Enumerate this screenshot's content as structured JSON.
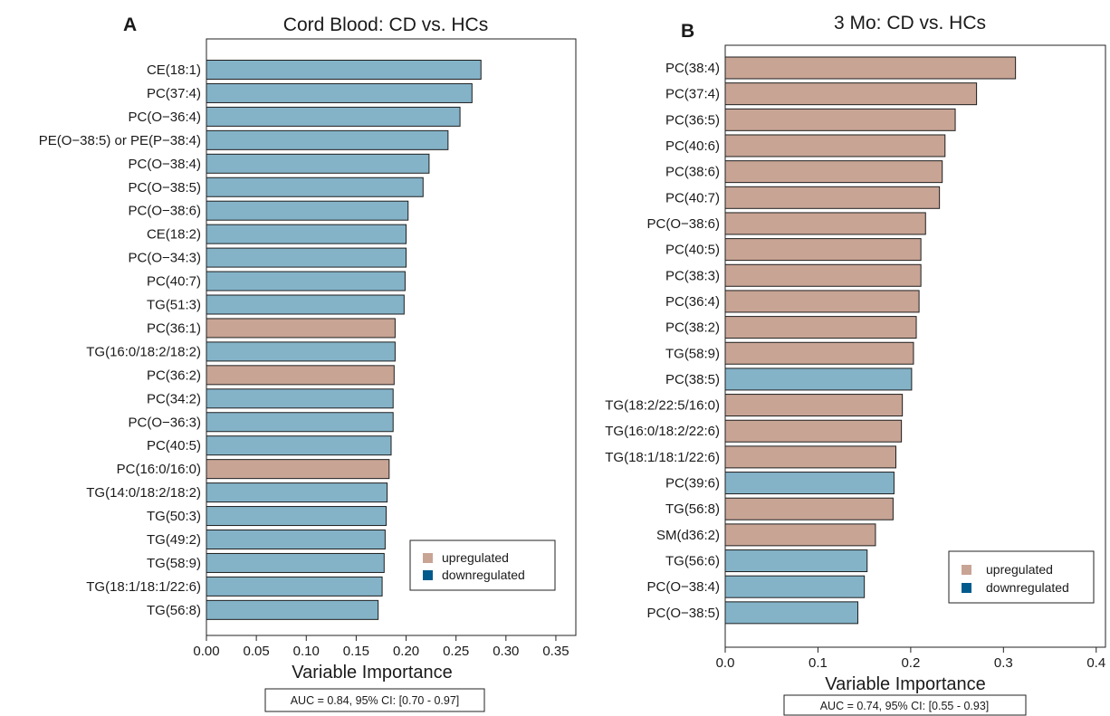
{
  "legend_colors": {
    "upregulated": "#c8a495",
    "downregulated": "#005a8c"
  },
  "bar_colors": {
    "upregulated": "#c8a495",
    "downregulated": "#84b3c8"
  },
  "chart_data": [
    {
      "type": "bar",
      "orientation": "horizontal",
      "panel": "A",
      "title": "Cord Blood: CD vs. HCs",
      "xlabel": "Variable Importance",
      "ylabel": "",
      "xlim": [
        0,
        0.37
      ],
      "x_ticks": [
        "0.00",
        "0.05",
        "0.10",
        "0.15",
        "0.20",
        "0.25",
        "0.30",
        "0.35"
      ],
      "grid": false,
      "legend_position": "bottom-right",
      "legend": [
        {
          "label": "upregulated",
          "key": "upregulated"
        },
        {
          "label": "downregulated",
          "key": "downregulated"
        }
      ],
      "annotation": "AUC = 0.84, 95% CI: [0.70 - 0.97]",
      "categories": [
        "CE(18:1)",
        "PC(37:4)",
        "PC(O−36:4)",
        "PE(O−38:5) or PE(P−38:4)",
        "PC(O−38:4)",
        "PC(O−38:5)",
        "PC(O−38:6)",
        "CE(18:2)",
        "PC(O−34:3)",
        "PC(40:7)",
        "TG(51:3)",
        "PC(36:1)",
        "TG(16:0/18:2/18:2)",
        "PC(36:2)",
        "PC(34:2)",
        "PC(O−36:3)",
        "PC(40:5)",
        "PC(16:0/16:0)",
        "TG(14:0/18:2/18:2)",
        "TG(50:3)",
        "TG(49:2)",
        "TG(58:9)",
        "TG(18:1/18:1/22:6)",
        "TG(56:8)"
      ],
      "values": [
        0.275,
        0.266,
        0.254,
        0.242,
        0.223,
        0.217,
        0.202,
        0.2,
        0.2,
        0.199,
        0.198,
        0.189,
        0.189,
        0.188,
        0.187,
        0.187,
        0.185,
        0.183,
        0.181,
        0.18,
        0.179,
        0.178,
        0.176,
        0.172
      ],
      "direction": [
        "downregulated",
        "downregulated",
        "downregulated",
        "downregulated",
        "downregulated",
        "downregulated",
        "downregulated",
        "downregulated",
        "downregulated",
        "downregulated",
        "downregulated",
        "upregulated",
        "downregulated",
        "upregulated",
        "downregulated",
        "downregulated",
        "downregulated",
        "upregulated",
        "downregulated",
        "downregulated",
        "downregulated",
        "downregulated",
        "downregulated",
        "downregulated"
      ]
    },
    {
      "type": "bar",
      "orientation": "horizontal",
      "panel": "B",
      "title": "3 Mo: CD vs. HCs",
      "xlabel": "Variable Importance",
      "ylabel": "",
      "xlim": [
        0,
        0.41
      ],
      "x_ticks": [
        "0.0",
        "0.1",
        "0.2",
        "0.3",
        "0.4"
      ],
      "grid": false,
      "legend_position": "bottom-right",
      "legend": [
        {
          "label": "upregulated",
          "key": "upregulated"
        },
        {
          "label": "downregulated",
          "key": "downregulated"
        }
      ],
      "annotation": "AUC = 0.74, 95% CI: [0.55 - 0.93]",
      "categories": [
        "PC(38:4)",
        "PC(37:4)",
        "PC(36:5)",
        "PC(40:6)",
        "PC(38:6)",
        "PC(40:7)",
        "PC(O−38:6)",
        "PC(40:5)",
        "PC(38:3)",
        "PC(36:4)",
        "PC(38:2)",
        "TG(58:9)",
        "PC(38:5)",
        "TG(18:2/22:5/16:0)",
        "TG(16:0/18:2/22:6)",
        "TG(18:1/18:1/22:6)",
        "PC(39:6)",
        "TG(56:8)",
        "SM(d36:2)",
        "TG(56:6)",
        "PC(O−38:4)",
        "PC(O−38:5)"
      ],
      "values": [
        0.313,
        0.271,
        0.248,
        0.237,
        0.234,
        0.231,
        0.216,
        0.211,
        0.211,
        0.209,
        0.206,
        0.203,
        0.201,
        0.191,
        0.19,
        0.184,
        0.182,
        0.181,
        0.162,
        0.153,
        0.15,
        0.143
      ],
      "direction": [
        "upregulated",
        "upregulated",
        "upregulated",
        "upregulated",
        "upregulated",
        "upregulated",
        "upregulated",
        "upregulated",
        "upregulated",
        "upregulated",
        "upregulated",
        "upregulated",
        "downregulated",
        "upregulated",
        "upregulated",
        "upregulated",
        "downregulated",
        "upregulated",
        "upregulated",
        "downregulated",
        "downregulated",
        "downregulated"
      ]
    }
  ]
}
